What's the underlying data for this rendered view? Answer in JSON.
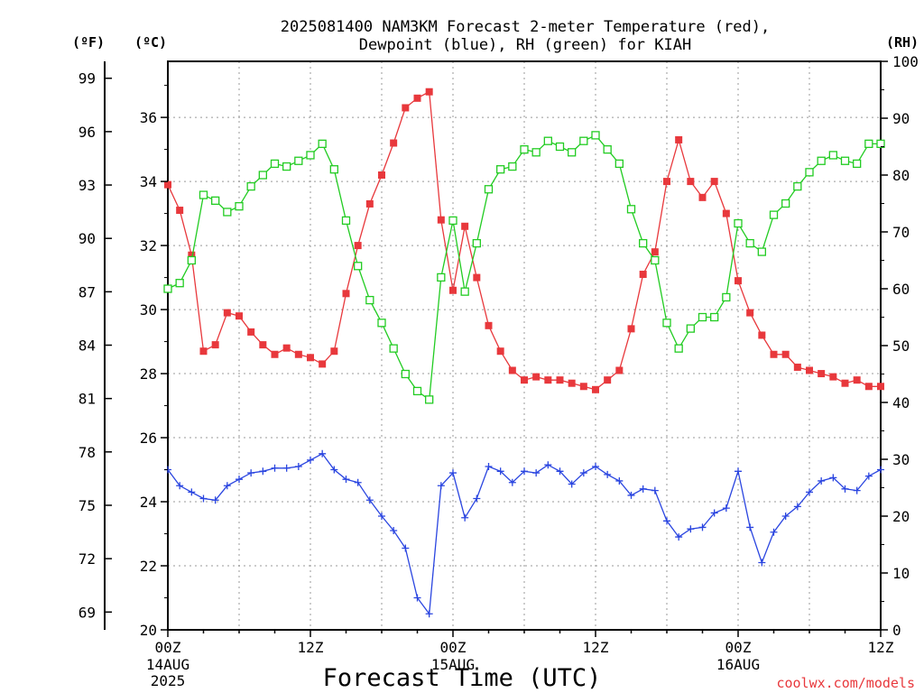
{
  "chart_data": {
    "type": "line",
    "title_line1": "2025081400 NAM3KM Forecast 2-meter Temperature (red),",
    "title_line2": "Dewpoint (blue), RH (green) for KIAH",
    "xlabel": "Forecast Time (UTC)",
    "credit": "coolwx.com/models",
    "units": {
      "fahrenheit": "(ºF)",
      "celsius": "(ºC)",
      "rh": "(RH)"
    },
    "x_range_hours": [
      0,
      60
    ],
    "celsius_range": [
      20,
      37.75
    ],
    "rh_range": [
      0,
      100
    ],
    "fahrenheit_ticks": [
      "69",
      "72",
      "75",
      "78",
      "81",
      "84",
      "87",
      "90",
      "93",
      "96",
      "99"
    ],
    "celsius_ticks": [
      "20",
      "22",
      "24",
      "26",
      "28",
      "30",
      "32",
      "34",
      "36"
    ],
    "rh_ticks": [
      "0",
      "10",
      "20",
      "30",
      "40",
      "50",
      "60",
      "70",
      "80",
      "90",
      "100"
    ],
    "x_ticks": [
      {
        "hour": 0,
        "label": "00Z",
        "sub1": "14AUG",
        "sub2": "2025"
      },
      {
        "hour": 12,
        "label": "12Z",
        "sub1": "",
        "sub2": ""
      },
      {
        "hour": 24,
        "label": "00Z",
        "sub1": "15AUG",
        "sub2": ""
      },
      {
        "hour": 36,
        "label": "12Z",
        "sub1": "",
        "sub2": ""
      },
      {
        "hour": 48,
        "label": "00Z",
        "sub1": "16AUG",
        "sub2": ""
      },
      {
        "hour": 60,
        "label": "12Z",
        "sub1": "",
        "sub2": ""
      }
    ],
    "grid": true,
    "colors": {
      "temperature": "#e8383c",
      "dewpoint": "#2a45e0",
      "rh": "#22cc22",
      "grid": "#999999"
    },
    "series": [
      {
        "name": "Temperature (red)",
        "units": "C",
        "marker": "filled-square",
        "x": [
          0,
          1,
          2,
          3,
          4,
          5,
          6,
          7,
          8,
          9,
          10,
          11,
          12,
          13,
          14,
          15,
          16,
          17,
          18,
          19,
          20,
          21,
          22,
          23,
          24,
          25,
          26,
          27,
          28,
          29,
          30,
          31,
          32,
          33,
          34,
          35,
          36,
          37,
          38,
          39,
          40,
          41,
          42,
          43,
          44,
          45,
          46,
          47,
          48,
          49,
          50,
          51,
          52,
          53,
          54,
          55,
          56,
          57,
          58,
          59,
          60
        ],
        "values": [
          33.9,
          33.1,
          31.7,
          28.7,
          28.9,
          29.9,
          29.8,
          29.3,
          28.9,
          28.6,
          28.8,
          28.6,
          28.5,
          28.3,
          28.7,
          30.5,
          32.0,
          33.3,
          34.2,
          35.2,
          36.3,
          36.6,
          36.8,
          32.8,
          30.6,
          32.6,
          31.0,
          29.5,
          28.7,
          28.1,
          27.8,
          27.9,
          27.8,
          27.8,
          27.7,
          27.6,
          27.5,
          27.8,
          28.1,
          29.4,
          31.1,
          31.8,
          34.0,
          35.3,
          34.0,
          33.5,
          34.0,
          33.0,
          30.9,
          29.9,
          29.2,
          28.6,
          28.6,
          28.2,
          28.1,
          28.0,
          27.9,
          27.7,
          27.8,
          27.6,
          27.6
        ]
      },
      {
        "name": "Dewpoint (blue)",
        "units": "C",
        "marker": "plus",
        "x": [
          0,
          1,
          2,
          3,
          4,
          5,
          6,
          7,
          8,
          9,
          10,
          11,
          12,
          13,
          14,
          15,
          16,
          17,
          18,
          19,
          20,
          21,
          22,
          23,
          24,
          25,
          26,
          27,
          28,
          29,
          30,
          31,
          32,
          33,
          34,
          35,
          36,
          37,
          38,
          39,
          40,
          41,
          42,
          43,
          44,
          45,
          46,
          47,
          48,
          49,
          50,
          51,
          52,
          53,
          54,
          55,
          56,
          57,
          58,
          59,
          60
        ],
        "values": [
          25.0,
          24.5,
          24.3,
          24.1,
          24.05,
          24.5,
          24.7,
          24.9,
          24.95,
          25.05,
          25.05,
          25.1,
          25.3,
          25.5,
          25.0,
          24.7,
          24.6,
          24.05,
          23.55,
          23.1,
          22.55,
          21.0,
          20.5,
          24.5,
          24.9,
          23.5,
          24.1,
          25.1,
          24.95,
          24.6,
          24.95,
          24.9,
          25.15,
          24.95,
          24.55,
          24.9,
          25.1,
          24.85,
          24.65,
          24.2,
          24.4,
          24.35,
          23.4,
          22.9,
          23.15,
          23.2,
          23.65,
          23.8,
          24.95,
          23.2,
          22.1,
          23.05,
          23.55,
          23.85,
          24.3,
          24.65,
          24.75,
          24.4,
          24.35,
          24.8,
          25.0
        ]
      },
      {
        "name": "RH (green)",
        "units": "%",
        "marker": "open-square",
        "x": [
          0,
          1,
          2,
          3,
          4,
          5,
          6,
          7,
          8,
          9,
          10,
          11,
          12,
          13,
          14,
          15,
          16,
          17,
          18,
          19,
          20,
          21,
          22,
          23,
          24,
          25,
          26,
          27,
          28,
          29,
          30,
          31,
          32,
          33,
          34,
          35,
          36,
          37,
          38,
          39,
          40,
          41,
          42,
          43,
          44,
          45,
          46,
          47,
          48,
          49,
          50,
          51,
          52,
          53,
          54,
          55,
          56,
          57,
          58,
          59,
          60
        ],
        "values": [
          60,
          61,
          65,
          76.5,
          75.5,
          73.5,
          74.5,
          78,
          80,
          82,
          81.5,
          82.5,
          83.5,
          85.5,
          81,
          72,
          64,
          58,
          54,
          49.5,
          45,
          42,
          40.5,
          62,
          72,
          59.5,
          68,
          77.5,
          81,
          81.5,
          84.5,
          84,
          86,
          85,
          84,
          86,
          87,
          84.5,
          82,
          74,
          68,
          65,
          54,
          49.5,
          53,
          55,
          55,
          58.5,
          71.5,
          68,
          66.5,
          73,
          75,
          78,
          80.5,
          82.5,
          83.5,
          82.5,
          82,
          85.5,
          85.5
        ]
      }
    ]
  }
}
